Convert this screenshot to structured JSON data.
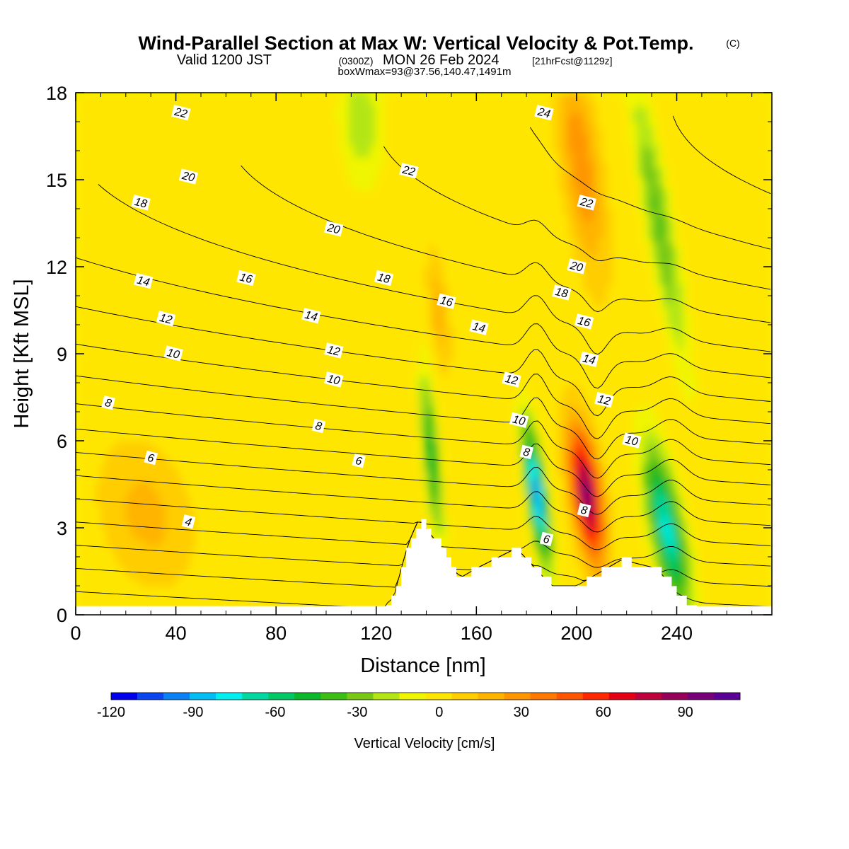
{
  "title": {
    "main": "Wind-Parallel Section at Max W: Vertical Velocity & Pot.Temp.",
    "copyright": "(C)",
    "valid_prefix": "Valid 1200 JST",
    "valid_utc": "(0300Z)",
    "valid_date": "MON 26 Feb 2024",
    "forecast": "[21hrFcst@1129z]",
    "box_info": "boxWmax=93@37.56,140.47,1491m"
  },
  "chart_data": {
    "type": "heatmap",
    "title": "Wind-Parallel Section at Max W: Vertical Velocity & Pot.Temp.",
    "xlabel": "Distance [nm]",
    "ylabel": "Height [Kft MSL]",
    "xlim": [
      0,
      278
    ],
    "ylim": [
      0,
      18
    ],
    "x_ticks": [
      "0",
      "40",
      "80",
      "120",
      "160",
      "200",
      "240"
    ],
    "y_ticks": [
      "0",
      "3",
      "6",
      "9",
      "12",
      "15",
      "18"
    ],
    "colorbar": {
      "label": "Vertical Velocity [cm/s]",
      "range": [
        -120,
        110
      ],
      "ticks": [
        "-120",
        "-90",
        "-60",
        "-30",
        "0",
        "30",
        "60",
        "90"
      ],
      "colors": [
        "#0000ee",
        "#0a46f0",
        "#0a82f5",
        "#00bef5",
        "#00f0f0",
        "#00d8a0",
        "#00c864",
        "#0ab82a",
        "#3cbe14",
        "#78c814",
        "#b4e614",
        "#f0f500",
        "#ffe600",
        "#ffcd00",
        "#ffb400",
        "#ff9600",
        "#ff7800",
        "#ff5500",
        "#ff2800",
        "#e60014",
        "#be003c",
        "#96005a",
        "#780078",
        "#5a0096"
      ]
    },
    "max_w": {
      "value": 93,
      "unit": "cm/s",
      "distance_nm": 204,
      "height_kft": 4
    },
    "updraft_cores": [
      {
        "distance_nm": 28,
        "height_kft": 3.5,
        "w_cms": 18
      },
      {
        "distance_nm": 145,
        "height_kft": 10.5,
        "w_cms": 22
      },
      {
        "distance_nm": 204,
        "height_kft": 4.2,
        "w_cms": 93
      },
      {
        "distance_nm": 202,
        "height_kft": 15.5,
        "w_cms": 32
      }
    ],
    "downdraft_cores": [
      {
        "distance_nm": 184,
        "height_kft": 4.2,
        "w_cms": -95
      },
      {
        "distance_nm": 236,
        "height_kft": 3.0,
        "w_cms": -75
      },
      {
        "distance_nm": 142,
        "height_kft": 5.5,
        "w_cms": -50
      },
      {
        "distance_nm": 233,
        "height_kft": 13.5,
        "w_cms": -35
      },
      {
        "distance_nm": 114,
        "height_kft": 17.0,
        "w_cms": -22
      }
    ],
    "terrain_kft": [
      [
        123,
        0.3
      ],
      [
        127,
        0.6
      ],
      [
        130,
        1.6
      ],
      [
        133,
        2.5
      ],
      [
        137,
        3.3
      ],
      [
        146,
        2.3
      ],
      [
        150,
        1.6
      ],
      [
        154,
        1.3
      ],
      [
        160,
        1.6
      ],
      [
        176,
        2.3
      ],
      [
        190,
        1.0
      ],
      [
        200,
        1.0
      ],
      [
        206,
        1.3
      ],
      [
        212,
        1.6
      ],
      [
        218,
        1.9
      ],
      [
        232,
        1.6
      ],
      [
        238,
        1.0
      ],
      [
        244,
        0.3
      ],
      [
        248,
        0.3
      ]
    ],
    "theta_contours": {
      "units": "C (pot. temp.)",
      "labels": [
        {
          "value": "4",
          "x_nm": 45,
          "y_kft": 3.2
        },
        {
          "value": "6",
          "x_nm": 30,
          "y_kft": 5.4
        },
        {
          "value": "6",
          "x_nm": 113,
          "y_kft": 5.3
        },
        {
          "value": "6",
          "x_nm": 188,
          "y_kft": 2.6
        },
        {
          "value": "8",
          "x_nm": 13,
          "y_kft": 7.3
        },
        {
          "value": "8",
          "x_nm": 97,
          "y_kft": 6.5
        },
        {
          "value": "8",
          "x_nm": 180,
          "y_kft": 5.6
        },
        {
          "value": "8",
          "x_nm": 203,
          "y_kft": 3.6
        },
        {
          "value": "10",
          "x_nm": 39,
          "y_kft": 9.0
        },
        {
          "value": "10",
          "x_nm": 103,
          "y_kft": 8.1
        },
        {
          "value": "10",
          "x_nm": 177,
          "y_kft": 6.7
        },
        {
          "value": "10",
          "x_nm": 222,
          "y_kft": 6.0
        },
        {
          "value": "12",
          "x_nm": 36,
          "y_kft": 10.2
        },
        {
          "value": "12",
          "x_nm": 103,
          "y_kft": 9.1
        },
        {
          "value": "12",
          "x_nm": 174,
          "y_kft": 8.1
        },
        {
          "value": "12",
          "x_nm": 211,
          "y_kft": 7.4
        },
        {
          "value": "14",
          "x_nm": 27,
          "y_kft": 11.5
        },
        {
          "value": "14",
          "x_nm": 94,
          "y_kft": 10.3
        },
        {
          "value": "14",
          "x_nm": 161,
          "y_kft": 9.9
        },
        {
          "value": "14",
          "x_nm": 205,
          "y_kft": 8.8
        },
        {
          "value": "16",
          "x_nm": 68,
          "y_kft": 11.6
        },
        {
          "value": "16",
          "x_nm": 148,
          "y_kft": 10.8
        },
        {
          "value": "16",
          "x_nm": 203,
          "y_kft": 10.1
        },
        {
          "value": "18",
          "x_nm": 26,
          "y_kft": 14.2
        },
        {
          "value": "18",
          "x_nm": 123,
          "y_kft": 11.6
        },
        {
          "value": "18",
          "x_nm": 194,
          "y_kft": 11.1
        },
        {
          "value": "20",
          "x_nm": 45,
          "y_kft": 15.1
        },
        {
          "value": "20",
          "x_nm": 103,
          "y_kft": 13.3
        },
        {
          "value": "20",
          "x_nm": 200,
          "y_kft": 12.0
        },
        {
          "value": "22",
          "x_nm": 42,
          "y_kft": 17.3
        },
        {
          "value": "22",
          "x_nm": 133,
          "y_kft": 15.3
        },
        {
          "value": "22",
          "x_nm": 204,
          "y_kft": 14.2
        },
        {
          "value": "24",
          "x_nm": 187,
          "y_kft": 17.3
        }
      ]
    }
  }
}
